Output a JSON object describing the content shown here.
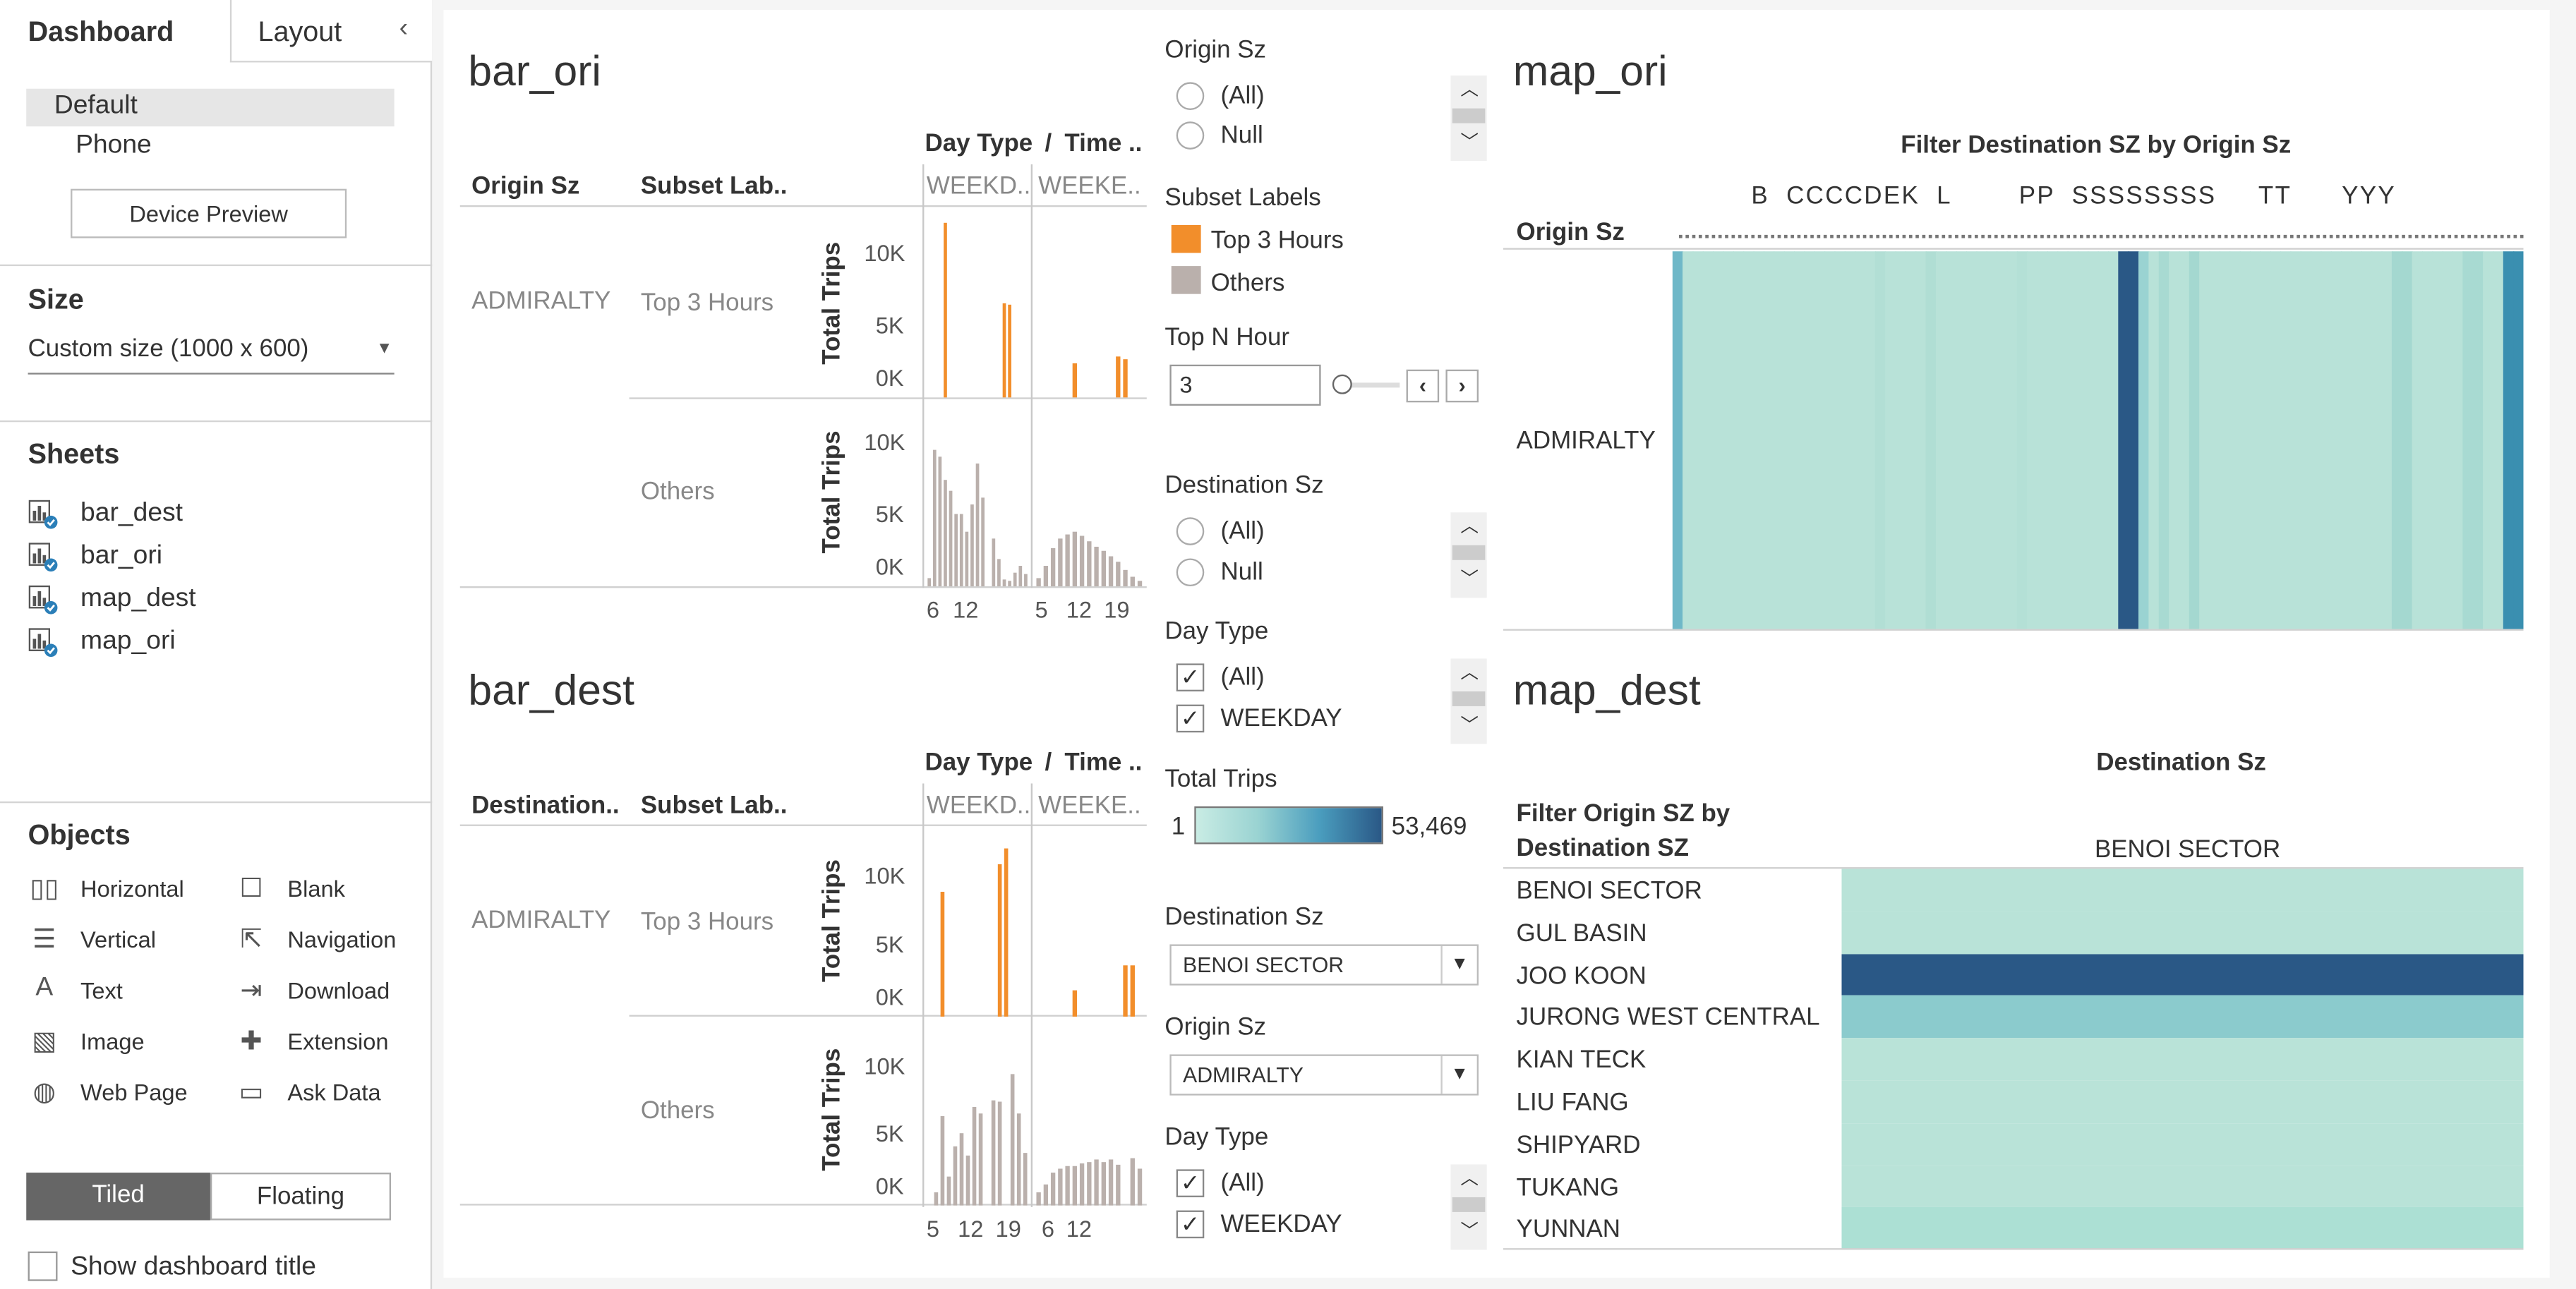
{
  "sidebar": {
    "tabs": [
      "Dashboard",
      "Layout"
    ],
    "collapse_icon": "chevron-left-icon",
    "devices": {
      "default": "Default",
      "phone": "Phone",
      "preview_button": "Device Preview"
    },
    "size": {
      "title": "Size",
      "value": "Custom size (1000 x 600)"
    },
    "sheets": {
      "title": "Sheets",
      "items": [
        "bar_dest",
        "bar_ori",
        "map_dest",
        "map_ori"
      ]
    },
    "objects": {
      "title": "Objects",
      "items": [
        {
          "label": "Horizontal",
          "icon": "horizontal-container-icon"
        },
        {
          "label": "Blank",
          "icon": "blank-icon"
        },
        {
          "label": "Vertical",
          "icon": "vertical-container-icon"
        },
        {
          "label": "Navigation",
          "icon": "navigation-icon"
        },
        {
          "label": "Text",
          "icon": "text-icon"
        },
        {
          "label": "Download",
          "icon": "download-icon"
        },
        {
          "label": "Image",
          "icon": "image-icon"
        },
        {
          "label": "Extension",
          "icon": "extension-icon"
        },
        {
          "label": "Web Page",
          "icon": "web-page-icon"
        },
        {
          "label": "Ask Data",
          "icon": "ask-data-icon"
        }
      ]
    },
    "mode": {
      "tiled": "Tiled",
      "floating": "Floating"
    },
    "show_title": "Show dashboard title"
  },
  "bar_ori": {
    "title": "bar_ori",
    "col_origin": "Origin Sz",
    "col_subset": "Subset Lab..",
    "col_day": "Day Type",
    "col_sep": "/",
    "col_time": "Time ..",
    "weekday": "WEEKD..",
    "weekend": "WEEKE..",
    "row_label": "ADMIRALTY",
    "top_label": "Top 3 Hours",
    "others_label": "Others",
    "axis_title": "Total Trips",
    "yticks": [
      "10K",
      "5K",
      "0K"
    ],
    "xticks_wd": [
      "6",
      "12"
    ],
    "xticks_we": [
      "5",
      "12",
      "19"
    ]
  },
  "bar_dest": {
    "title": "bar_dest",
    "col_origin": "Destination..",
    "col_subset": "Subset Lab..",
    "col_day": "Day Type",
    "col_sep": "/",
    "col_time": "Time ..",
    "weekday": "WEEKD..",
    "weekend": "WEEKE..",
    "row_label": "ADMIRALTY",
    "top_label": "Top 3 Hours",
    "others_label": "Others",
    "axis_title": "Total Trips",
    "yticks": [
      "10K",
      "5K",
      "0K"
    ],
    "xticks_wd": [
      "5",
      "12",
      "19"
    ],
    "xticks_we": [
      "6",
      "12"
    ]
  },
  "filters": {
    "origin1": {
      "title": "Origin Sz",
      "opts": [
        "(All)",
        "Null"
      ]
    },
    "subset": {
      "title": "Subset Labels",
      "items": [
        {
          "label": "Top 3 Hours",
          "color": "#f28e2b"
        },
        {
          "label": "Others",
          "color": "#bab0ac"
        }
      ]
    },
    "topn": {
      "title": "Top N Hour",
      "value": "3"
    },
    "dest1": {
      "title": "Destination Sz",
      "opts": [
        "(All)",
        "Null"
      ]
    },
    "day1": {
      "title": "Day Type",
      "opts": [
        "(All)",
        "WEEKDAY"
      ]
    },
    "total": {
      "title": "Total Trips",
      "min": "1",
      "max": "53,469"
    },
    "dest_dd": {
      "title": "Destination Sz",
      "value": "BENOI SECTOR"
    },
    "origin_dd": {
      "title": "Origin Sz",
      "value": "ADMIRALTY"
    },
    "day2": {
      "title": "Day Type",
      "opts": [
        "(All)",
        "WEEKDAY"
      ]
    }
  },
  "map_ori": {
    "title": "map_ori",
    "subtitle": "Filter Destination SZ by Origin Sz",
    "header_letters": "B  CCCCDEK  L        PP  SSSSSSSS     TT      YYY",
    "row_header": "Origin Sz",
    "row_label": "ADMIRALTY"
  },
  "map_dest": {
    "title": "map_dest",
    "col_title": "Destination Sz",
    "row_header_line1": "Filter Origin SZ by",
    "row_header_line2": "Destination SZ",
    "col_value": "BENOI SECTOR",
    "rows": [
      {
        "label": "BENOI SECTOR",
        "color": "#b9e3d8"
      },
      {
        "label": "GUL BASIN",
        "color": "#b9e3d8"
      },
      {
        "label": "JOO KOON",
        "color": "#2a5886"
      },
      {
        "label": "JURONG WEST CENTRAL",
        "color": "#8bcbcd"
      },
      {
        "label": "KIAN TECK",
        "color": "#b9e3d8"
      },
      {
        "label": "LIU FANG",
        "color": "#b9e3d8"
      },
      {
        "label": "SHIPYARD",
        "color": "#b9e3d8"
      },
      {
        "label": "TUKANG",
        "color": "#b9e3d8"
      },
      {
        "label": "YUNNAN",
        "color": "#ace0d4"
      }
    ]
  },
  "chart_data": [
    {
      "type": "bar",
      "name": "bar_ori",
      "ylabel": "Total Trips",
      "ylim": [
        0,
        13000
      ],
      "series": [
        {
          "name": "Top 3 Hours WEEKDAY",
          "color": "#f28e2b",
          "values": [
            0,
            0,
            0,
            12800,
            0,
            0,
            0,
            0,
            0,
            0,
            0,
            0,
            0,
            0,
            6900,
            6800,
            0,
            0,
            0
          ]
        },
        {
          "name": "Top 3 Hours WEEKEND",
          "color": "#f28e2b",
          "values": [
            0,
            0,
            0,
            0,
            0,
            2500,
            0,
            0,
            0,
            0,
            0,
            3000,
            2800,
            0,
            0
          ]
        },
        {
          "name": "Others WEEKDAY",
          "color": "#bab0ac",
          "values": [
            600,
            10000,
            9500,
            7800,
            7000,
            5300,
            5300,
            4000,
            6000,
            9000,
            6500,
            0,
            3500,
            2000,
            500,
            400,
            1000,
            1500,
            900
          ]
        },
        {
          "name": "Others WEEKEND",
          "color": "#bab0ac",
          "values": [
            600,
            1500,
            2800,
            3500,
            3800,
            4000,
            3700,
            3300,
            2900,
            2600,
            2200,
            1800,
            1200,
            700,
            400
          ]
        }
      ]
    },
    {
      "type": "bar",
      "name": "bar_dest",
      "ylabel": "Total Trips",
      "ylim": [
        0,
        13500
      ],
      "series": [
        {
          "name": "Top 3 Hours WEEKDAY",
          "color": "#f28e2b",
          "values": [
            0,
            0,
            9500,
            0,
            0,
            0,
            0,
            0,
            0,
            0,
            0,
            11600,
            12800,
            0,
            0,
            0
          ]
        },
        {
          "name": "Top 3 Hours WEEKEND",
          "color": "#f28e2b",
          "values": [
            0,
            0,
            0,
            0,
            0,
            2000,
            0,
            0,
            0,
            0,
            0,
            0,
            3900,
            3900,
            0
          ]
        },
        {
          "name": "Others WEEKDAY",
          "color": "#bab0ac",
          "values": [
            0,
            1000,
            6800,
            2200,
            4500,
            5500,
            3800,
            7500,
            7000,
            0,
            8000,
            7900,
            0,
            10000,
            7000,
            4000
          ]
        },
        {
          "name": "Others WEEKEND",
          "color": "#bab0ac",
          "values": [
            1000,
            1600,
            2500,
            2800,
            3000,
            3000,
            3200,
            3300,
            3500,
            3300,
            3500,
            3100,
            0,
            3600,
            2800
          ]
        }
      ]
    },
    {
      "type": "heatmap",
      "name": "map_ori",
      "color_range": [
        "#b9e3d8",
        "#2a5886"
      ],
      "value_range": [
        1,
        53469
      ],
      "columns": [
        "#6fb8c8",
        "#b8e2d8",
        "#b8e2d8",
        "#b8e2d8",
        "#b8e2d8",
        "#b8e2d8",
        "#b8e2d8",
        "#b8e2d8",
        "#b8e2d8",
        "#b8e2d8",
        "#b8e2d8",
        "#b8e2d8",
        "#b8e2d8",
        "#b8e2d8",
        "#b8e2d8",
        "#b8e2d8",
        "#b8e2d8",
        "#b8e2d8",
        "#b8e2d8",
        "#b8e2d8",
        "#b2dfd5",
        "#b8e2d8",
        "#b8e2d8",
        "#b8e2d8",
        "#b8e2d8",
        "#b0ded4",
        "#b8e2d8",
        "#b8e2d8",
        "#b8e2d8",
        "#b8e2d8",
        "#b8e2d8",
        "#b8e2d8",
        "#b8e2d8",
        "#b8e2d8",
        "#b4e0d6",
        "#b8e2d8",
        "#b8e2d8",
        "#b8e2d8",
        "#b8e2d8",
        "#b8e2d8",
        "#b8e2d8",
        "#b8e2d8",
        "#b8e2d8",
        "#b8e2d8",
        "#2a5886",
        "#2a5886",
        "#9ad3d2",
        "#b8e2d8",
        "#a8dad2",
        "#b8e2d8",
        "#b8e2d8",
        "#a4d8d0",
        "#b8e2d8",
        "#b8e2d8",
        "#b8e2d8",
        "#b8e2d8",
        "#b8e2d8",
        "#b8e2d8",
        "#b8e2d8",
        "#b8e2d8",
        "#b8e2d8",
        "#b8e2d8",
        "#b8e2d8",
        "#b8e2d8",
        "#b8e2d8",
        "#b8e2d8",
        "#b8e2d8",
        "#b8e2d8",
        "#b8e2d8",
        "#b8e2d8",
        "#b8e2d8",
        "#a4d8d0",
        "#a4d8d0",
        "#b8e2d8",
        "#b8e2d8",
        "#b8e2d8",
        "#b8e2d8",
        "#b8e2d8",
        "#a8dad2",
        "#a8dad2",
        "#b8e2d8",
        "#b8e2d8",
        "#3a8fb0",
        "#3a8fb0"
      ]
    }
  ]
}
